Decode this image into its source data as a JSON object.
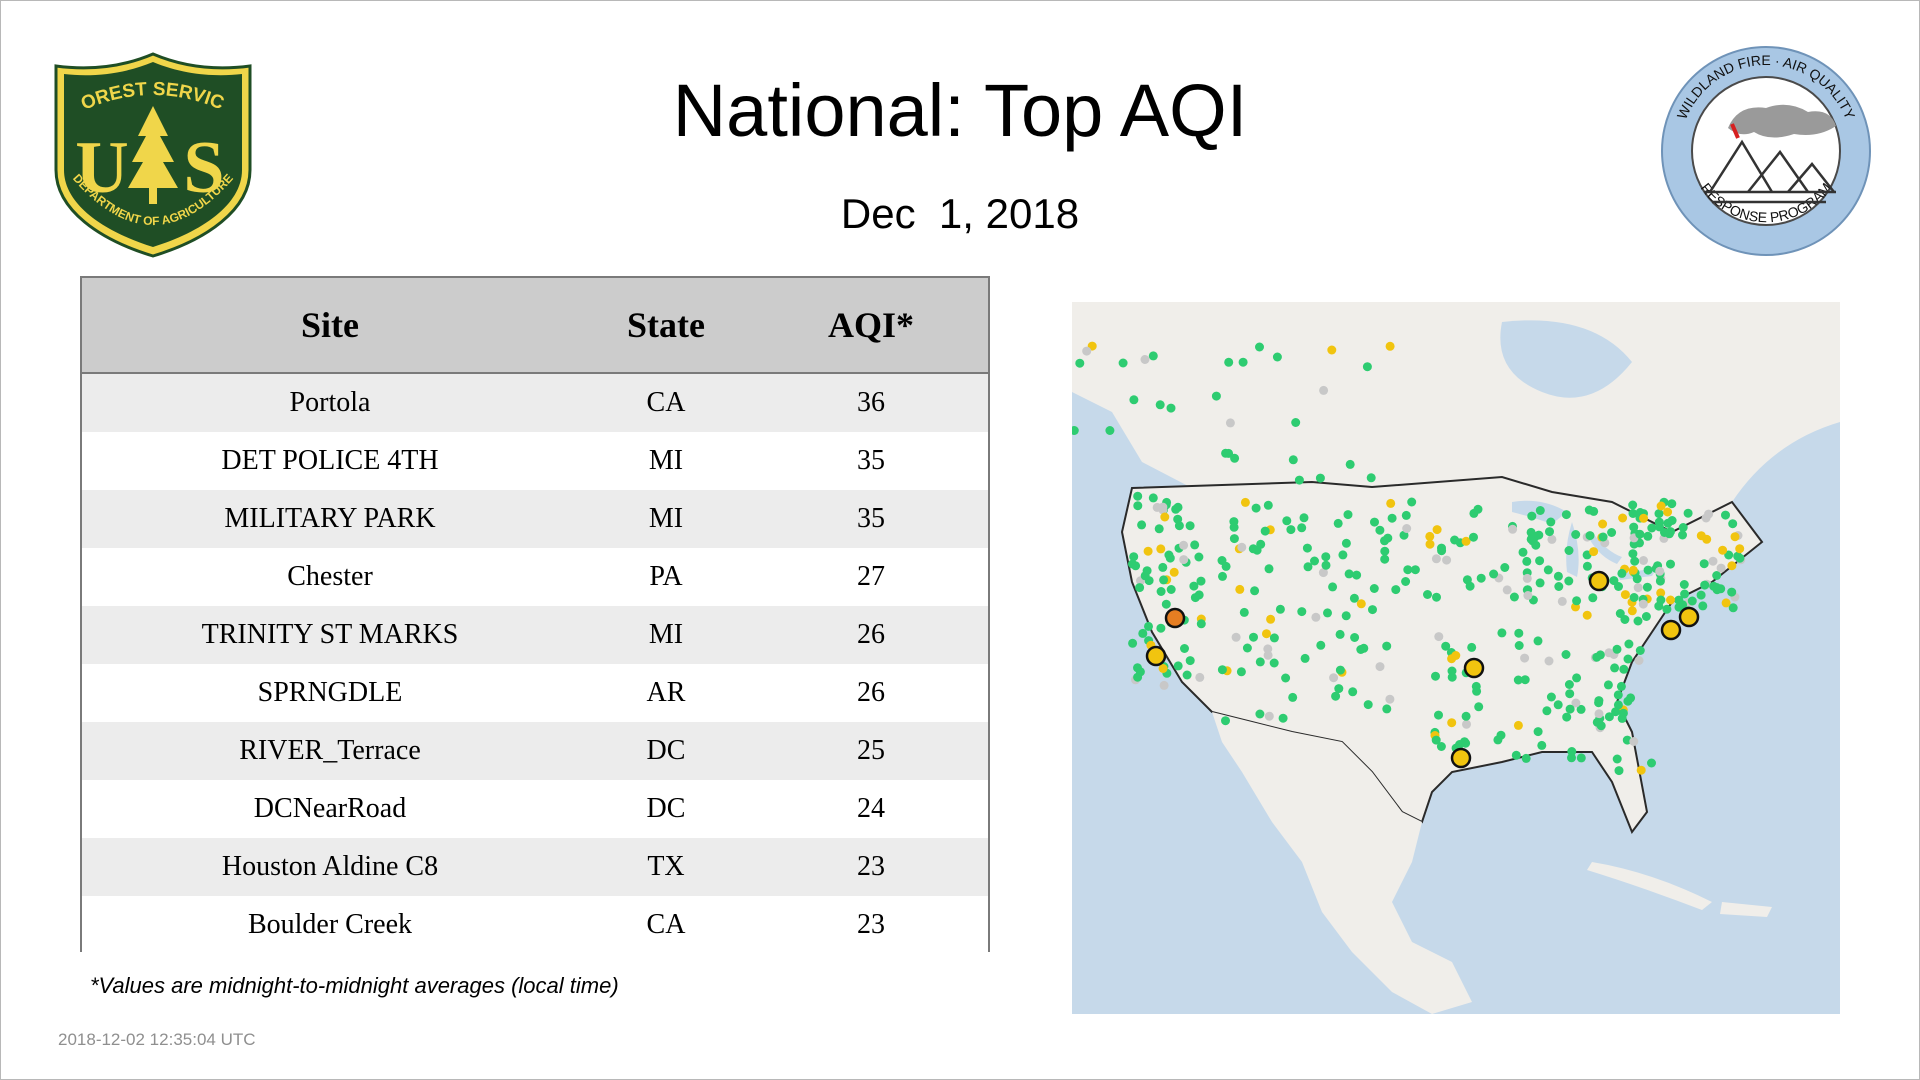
{
  "header": {
    "title": "National: Top AQI",
    "date": "Dec  1, 2018"
  },
  "logos": {
    "forest_service": {
      "top_text": "FOREST SERVICE",
      "letters_left": "U",
      "letters_right": "S",
      "bottom_text": "DEPARTMENT OF AGRICULTURE"
    },
    "wildland": {
      "top_text": "WILDLAND FIRE · AIR QUALITY",
      "bottom_text": "RESPONSE PROGRAM"
    }
  },
  "table": {
    "columns": [
      "Site",
      "State",
      "AQI*"
    ],
    "rows": [
      {
        "site": "Portola",
        "state": "CA",
        "aqi": "36"
      },
      {
        "site": "DET POLICE 4TH",
        "state": "MI",
        "aqi": "35"
      },
      {
        "site": "MILITARY PARK",
        "state": "MI",
        "aqi": "35"
      },
      {
        "site": "Chester",
        "state": "PA",
        "aqi": "27"
      },
      {
        "site": "TRINITY ST MARKS",
        "state": "MI",
        "aqi": "26"
      },
      {
        "site": "SPRNGDLE",
        "state": "AR",
        "aqi": "26"
      },
      {
        "site": "RIVER_Terrace",
        "state": "DC",
        "aqi": "25"
      },
      {
        "site": "DCNearRoad",
        "state": "DC",
        "aqi": "24"
      },
      {
        "site": "Houston Aldine C8",
        "state": "TX",
        "aqi": "23"
      },
      {
        "site": "Boulder Creek",
        "state": "CA",
        "aqi": "23"
      }
    ]
  },
  "footnote": "*Values are midnight-to-midnight averages (local time)",
  "timestamp": "2018-12-02 12:35:04 UTC",
  "colors": {
    "good": "#2ecc71",
    "moderate": "#f1c40f",
    "usg": "#e67e22",
    "no_data": "#c8c8c8",
    "water": "#c6d9ea",
    "land": "#f0eeea",
    "header_gray": "#cccccc",
    "fs_green": "#1f4e25",
    "fs_gold": "#f0d64a"
  }
}
